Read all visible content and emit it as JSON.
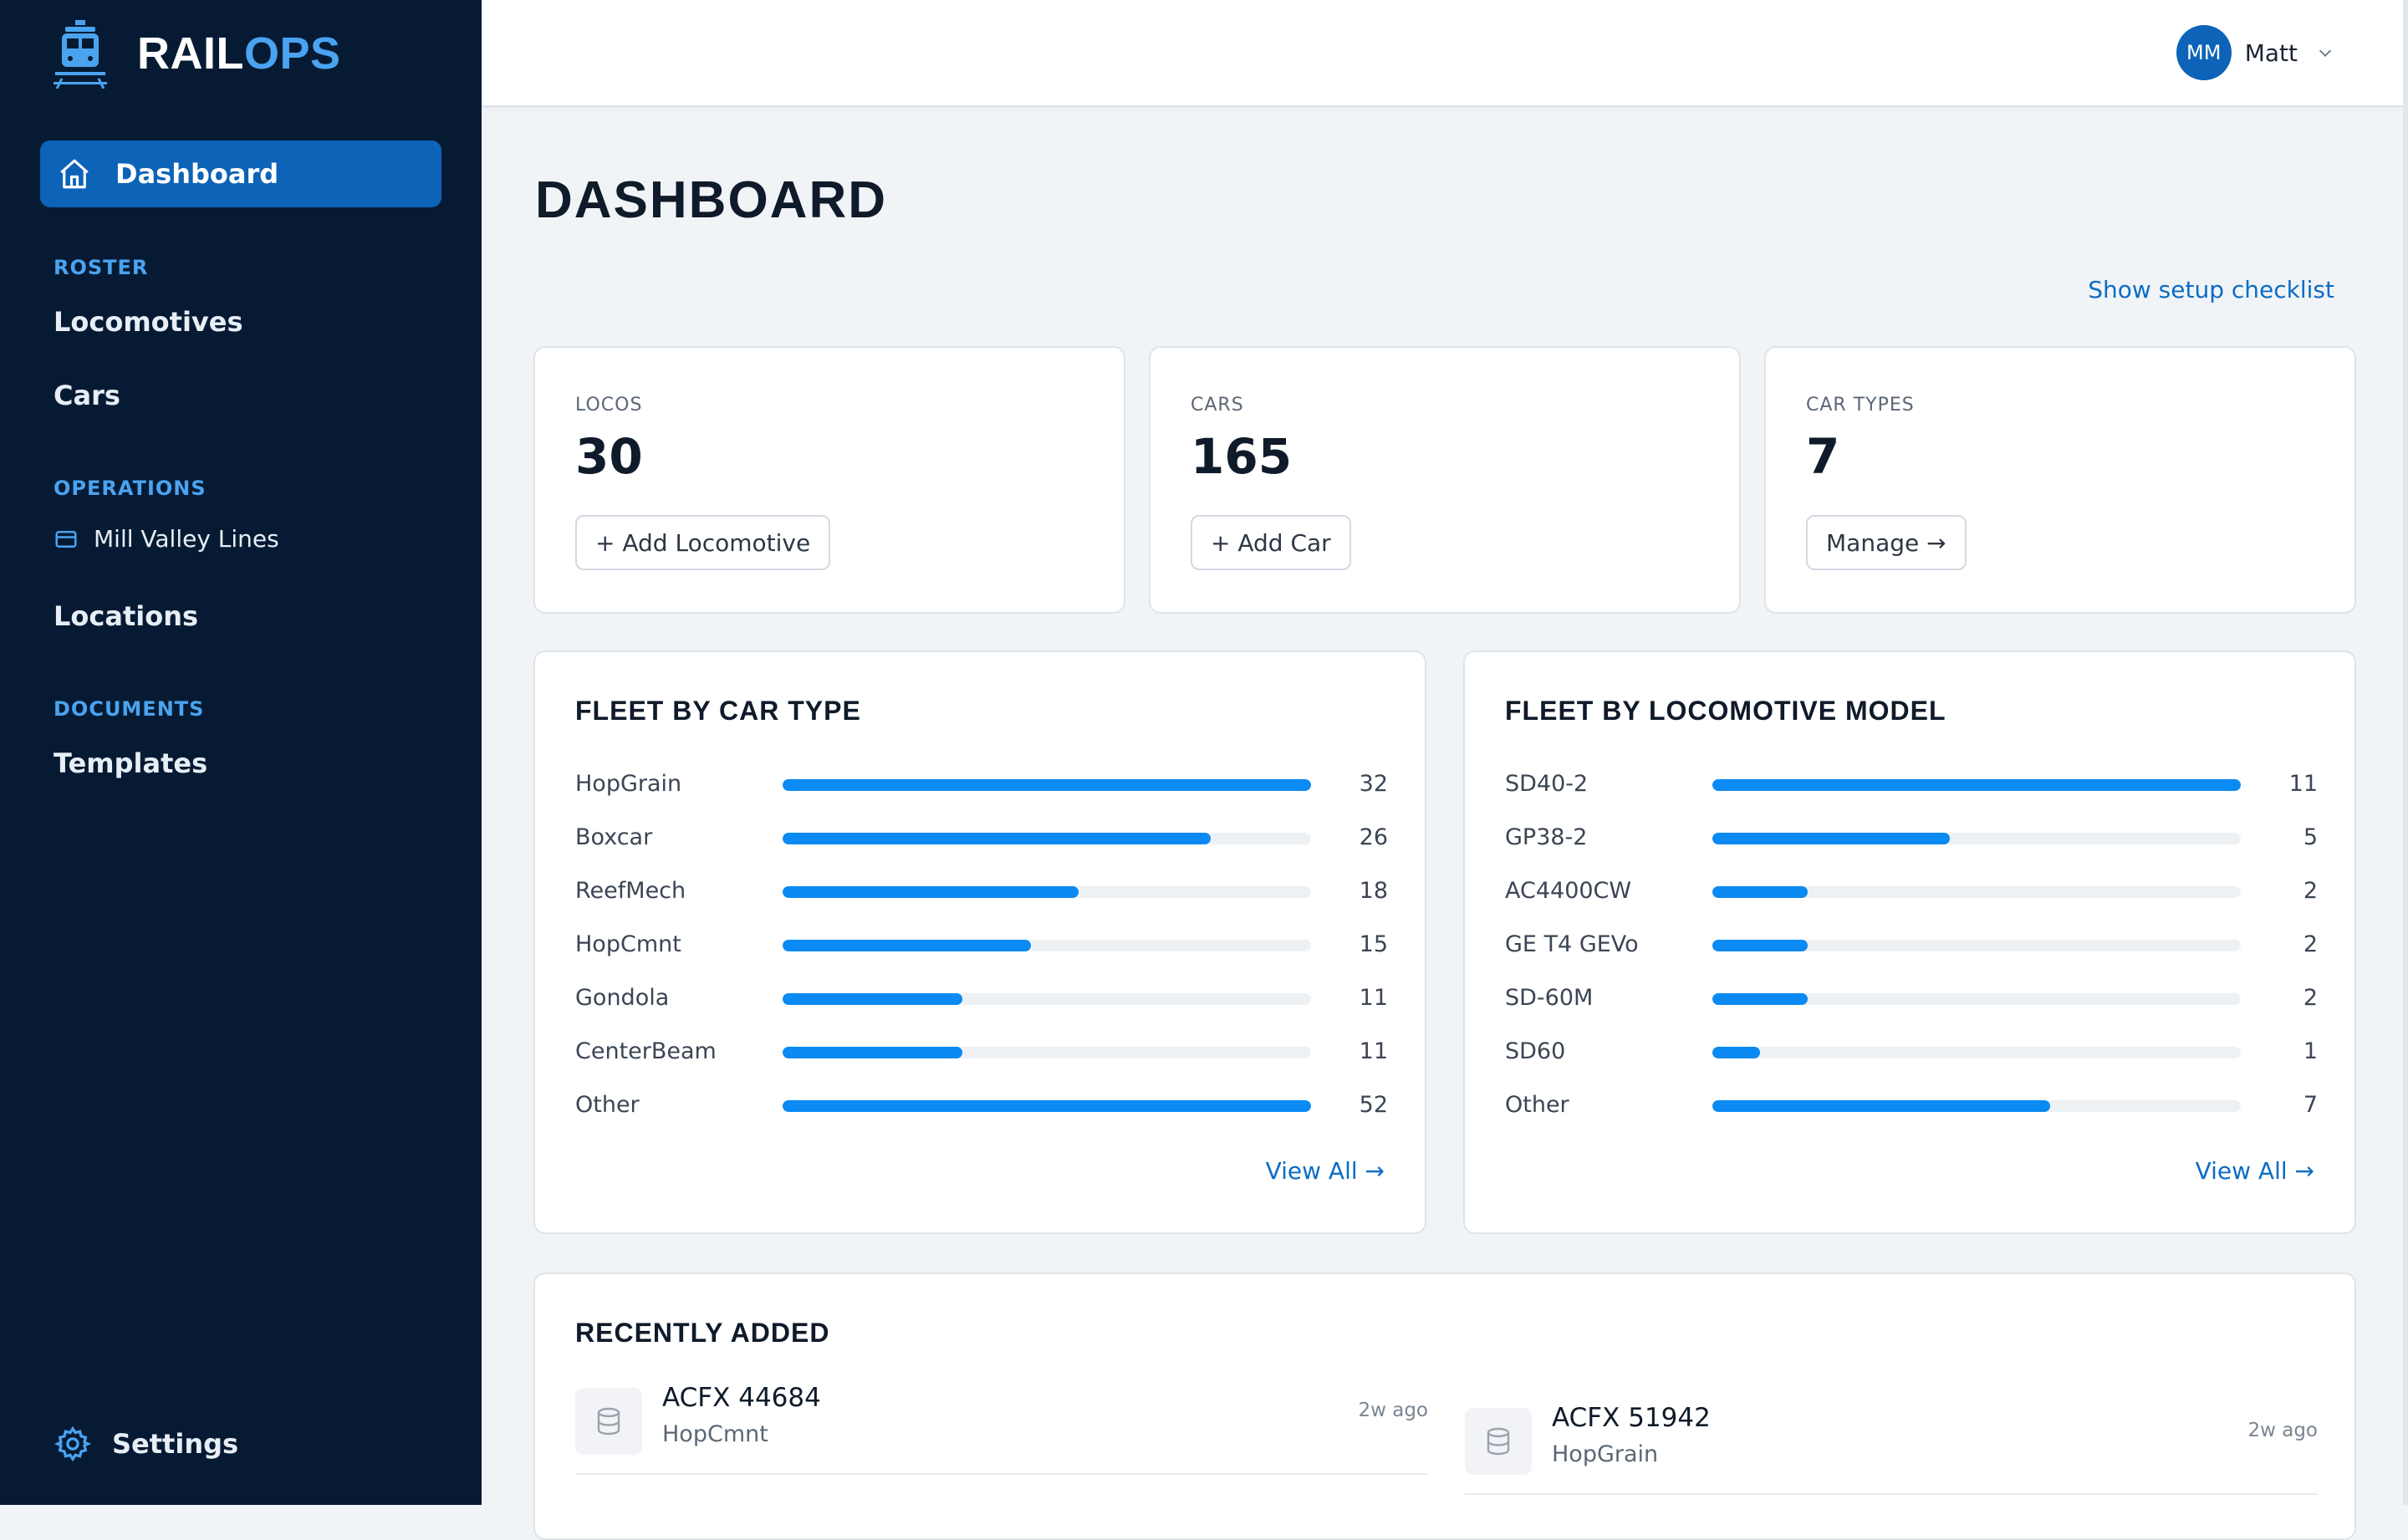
{
  "brand": {
    "name_part1": "RAIL",
    "name_part2": "OPS"
  },
  "sidebar": {
    "active": {
      "label": "Dashboard",
      "icon": "home-icon"
    },
    "sections": [
      {
        "label": "ROSTER",
        "items": [
          "Locomotives",
          "Cars"
        ]
      },
      {
        "label": "OPERATIONS",
        "items": [
          "Mill Valley Lines",
          "Locations"
        ]
      },
      {
        "label": "DOCUMENTS",
        "items": [
          "Templates"
        ]
      }
    ],
    "settings": "Settings"
  },
  "user": {
    "initials": "MM",
    "name": "Matt"
  },
  "page": {
    "title": "DASHBOARD",
    "setup_link": "Show setup checklist"
  },
  "stats": [
    {
      "label": "LOCOS",
      "value": "30",
      "button": "+ Add Locomotive"
    },
    {
      "label": "CARS",
      "value": "165",
      "button": "+ Add Car"
    },
    {
      "label": "CAR TYPES",
      "value": "7",
      "button": "Manage →"
    }
  ],
  "car_types": {
    "title": "FLEET BY CAR TYPE",
    "view_all": "View All →",
    "max": 52,
    "rows": [
      {
        "label": "HopGrain",
        "value": 32,
        "fill": 1.0
      },
      {
        "label": "Boxcar",
        "value": 26,
        "fill": 0.81
      },
      {
        "label": "ReefMech",
        "value": 18,
        "fill": 0.56
      },
      {
        "label": "HopCmnt",
        "value": 15,
        "fill": 0.47
      },
      {
        "label": "Gondola",
        "value": 11,
        "fill": 0.34
      },
      {
        "label": "CenterBeam",
        "value": 11,
        "fill": 0.34
      },
      {
        "label": "Other",
        "value": 52,
        "fill": 1.0
      }
    ]
  },
  "loco_models": {
    "title": "FLEET BY LOCOMOTIVE MODEL",
    "view_all": "View All →",
    "rows": [
      {
        "label": "SD40-2",
        "value": 11,
        "fill": 1.0
      },
      {
        "label": "GP38-2",
        "value": 5,
        "fill": 0.45
      },
      {
        "label": "AC4400CW",
        "value": 2,
        "fill": 0.18
      },
      {
        "label": "GE T4 GEVo",
        "value": 2,
        "fill": 0.18
      },
      {
        "label": "SD-60M",
        "value": 2,
        "fill": 0.18
      },
      {
        "label": "SD60",
        "value": 1,
        "fill": 0.09
      },
      {
        "label": "Other",
        "value": 7,
        "fill": 0.64
      }
    ]
  },
  "recent": {
    "title": "RECENTLY ADDED",
    "items": [
      {
        "name": "ACFX 44684",
        "type": "HopCmnt",
        "time": "2w ago"
      },
      {
        "name": "ACFX 51942",
        "type": "HopGrain",
        "time": "2w ago"
      }
    ]
  }
}
